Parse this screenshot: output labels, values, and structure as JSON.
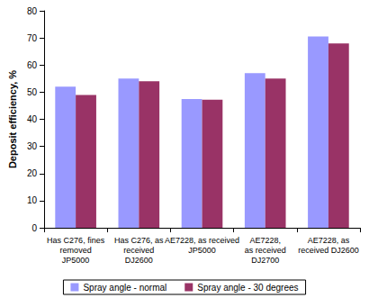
{
  "chart_data": {
    "type": "bar",
    "ylabel": "Deposit efficiency, %",
    "categories": [
      "Has C276, fines\nremoved\nJP5000",
      "Has C276, as\nreceived\nDJ2600",
      "AE7228, as received\nJP5000",
      "AE7228,\nas received\nDJ2700",
      "AE7228, as\nreceived DJ2600"
    ],
    "series": [
      {
        "name": "Spray angle - normal",
        "color": "#9999ff",
        "values": [
          52,
          55,
          47.5,
          57,
          70.5
        ]
      },
      {
        "name": "Spray angle - 30 degrees",
        "color": "#993366",
        "values": [
          49,
          54,
          47.2,
          55,
          68
        ]
      }
    ],
    "ylim": [
      0,
      80
    ],
    "yticks": [
      0,
      10,
      20,
      30,
      40,
      50,
      60,
      70,
      80
    ],
    "grid": false,
    "legend": "bottom"
  }
}
